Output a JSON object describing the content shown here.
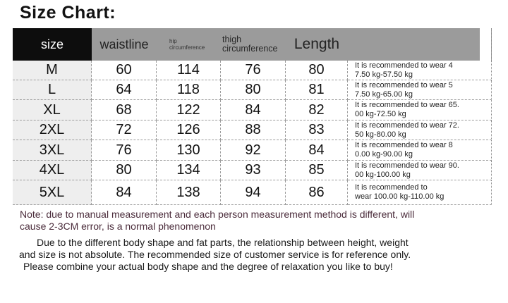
{
  "title": "Size Chart:",
  "colors": {
    "header_gray": "#9b9b9b",
    "header_black": "#0d0d0d",
    "size_column_bg": "#eeeeee",
    "dashed_border": "#9c9c9c",
    "note_text": "#4a2b3a"
  },
  "table": {
    "headers": {
      "size": "size",
      "waistline": "waistline",
      "hip_line1": "hip",
      "hip_line2": "circumference",
      "thigh_line1": "thigh",
      "thigh_line2": "circumference",
      "length": "Length"
    },
    "rows": [
      {
        "size": "M",
        "waistline": "60",
        "hip": "114",
        "thigh": "76",
        "length": "80",
        "rec1": "It is recommended to wear 4",
        "rec2": "7.50 kg-57.50 kg"
      },
      {
        "size": "L",
        "waistline": "64",
        "hip": "118",
        "thigh": "80",
        "length": "81",
        "rec1": "It is recommended to wear 5",
        "rec2": "7.50 kg-65.00 kg"
      },
      {
        "size": "XL",
        "waistline": "68",
        "hip": "122",
        "thigh": "84",
        "length": "82",
        "rec1": "It is recommended to wear 65.",
        "rec2": "00 kg-72.50 kg"
      },
      {
        "size": "2XL",
        "waistline": "72",
        "hip": "126",
        "thigh": "88",
        "length": "83",
        "rec1": "It is recommended to wear 72.",
        "rec2": "50 kg-80.00 kg"
      },
      {
        "size": "3XL",
        "waistline": "76",
        "hip": "130",
        "thigh": "92",
        "length": "84",
        "rec1": "It is recommended to wear 8",
        "rec2": "0.00 kg-90.00 kg"
      },
      {
        "size": "4XL",
        "waistline": "80",
        "hip": "134",
        "thigh": "93",
        "length": "85",
        "rec1": "It is recommended to wear 90.",
        "rec2": "00 kg-100.00 kg"
      },
      {
        "size": "5XL",
        "waistline": "84",
        "hip": "138",
        "thigh": "94",
        "length": "86",
        "rec1": "It is recommended to",
        "rec2": "wear 100.00 kg-110.00 kg"
      }
    ]
  },
  "footer": {
    "note_line1": "Note: due to manual measurement and each person measurement method is different, will",
    "note_line2": "cause 2-3CM error, is a normal phenomenon",
    "para_line1": "Due to the different body shape and fat parts, the relationship between height, weight",
    "para_line2": "and size is not absolute. The recommended size of customer service is for reference only.",
    "para_line3": "Please combine your actual body shape and the degree of relaxation you like to buy!"
  }
}
